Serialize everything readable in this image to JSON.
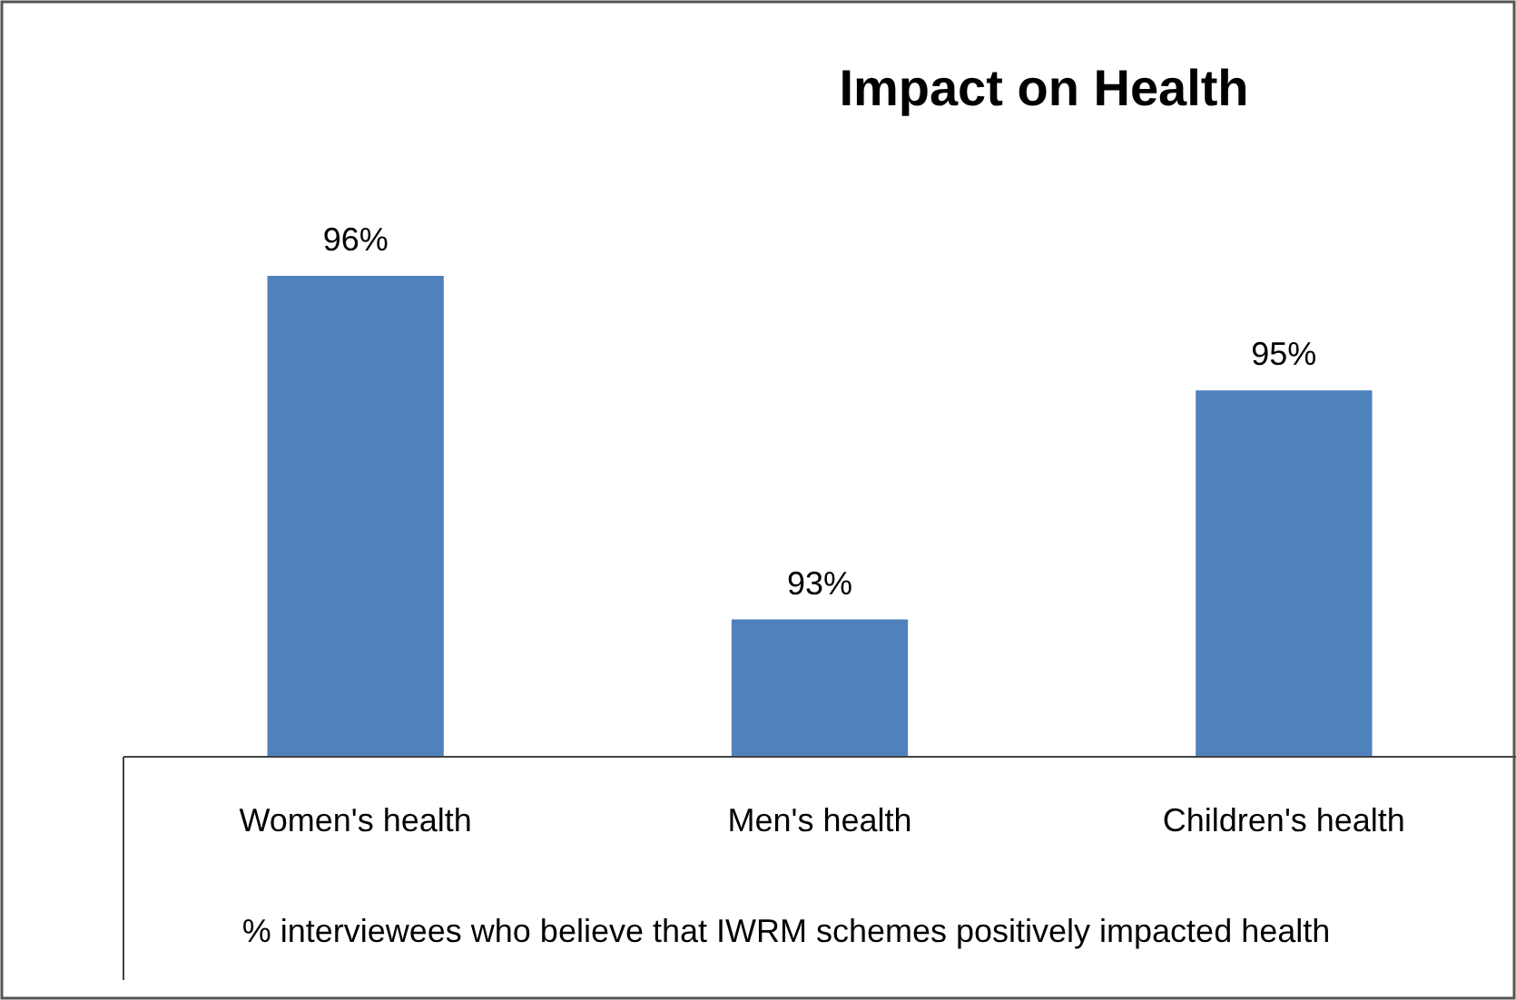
{
  "chart_data": {
    "type": "bar",
    "title": "Impact on Health",
    "xlabel": "% interviewees who believe that IWRM schemes positively  impacted health",
    "categories": [
      "Women's health",
      "Men's health",
      "Children's health"
    ],
    "values": [
      96,
      93,
      95
    ],
    "color": "#4f81bd",
    "value_labels": [
      "96%",
      "93%",
      "95%"
    ],
    "ylim": [
      91.8,
      96
    ],
    "tick_labels": "x",
    "grid": false
  }
}
